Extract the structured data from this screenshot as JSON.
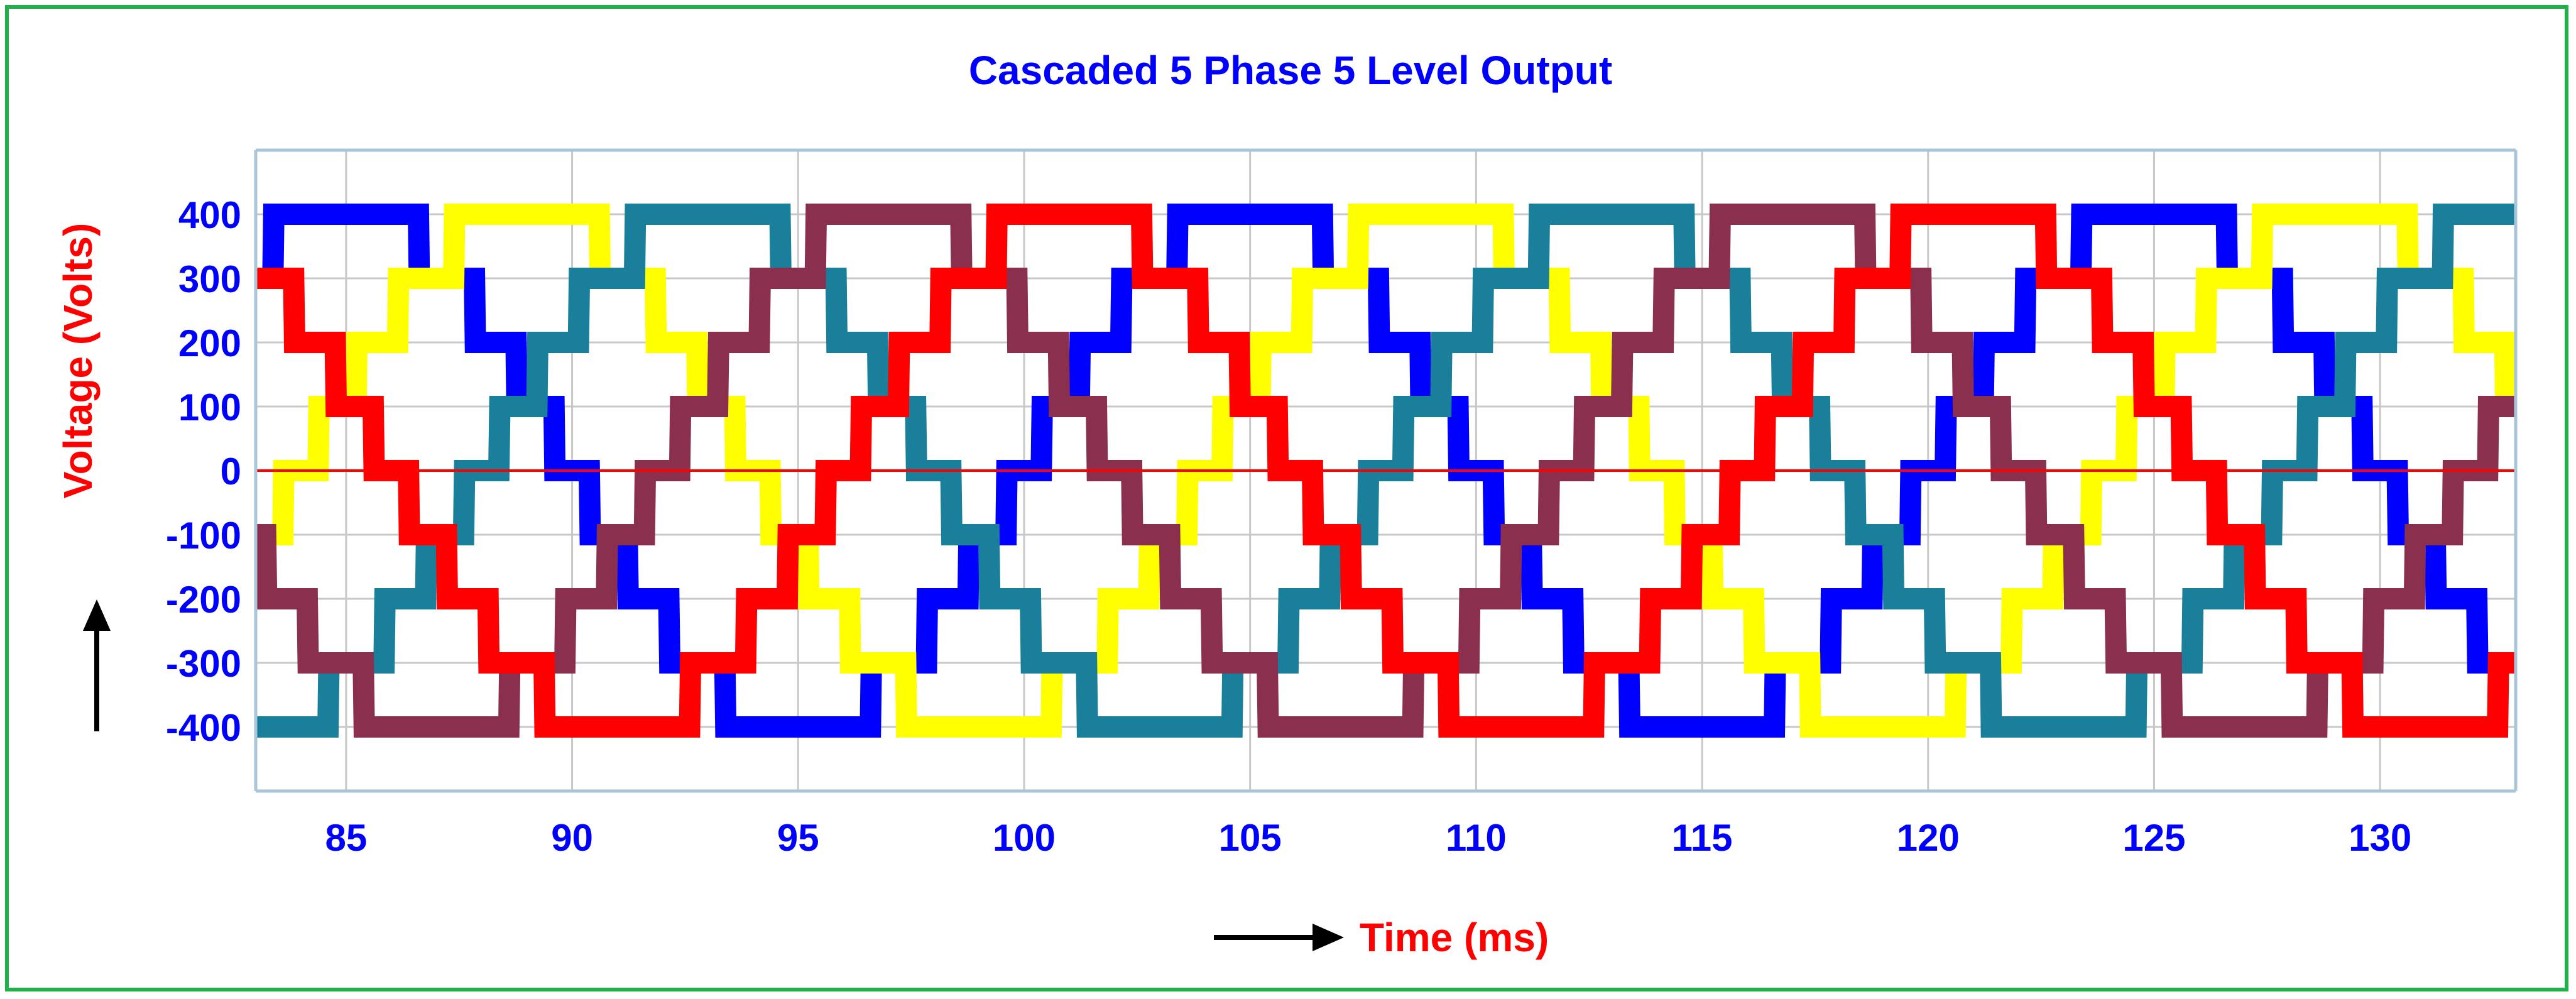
{
  "chart_data": {
    "type": "line",
    "title": "Cascaded 5 Phase 5 Level Output",
    "xlabel": "Time (ms)",
    "ylabel": "Voltage (Volts)",
    "xlim": [
      83,
      133
    ],
    "ylim": [
      -500,
      500
    ],
    "x_ticks": [
      85,
      90,
      95,
      100,
      105,
      110,
      115,
      120,
      125,
      130
    ],
    "y_ticks": [
      400,
      300,
      200,
      100,
      0,
      -100,
      -200,
      -300,
      -400
    ],
    "grid": true,
    "levels": [
      -400,
      -300,
      -200,
      -100,
      0,
      100,
      200,
      300,
      400
    ],
    "period_ms": 20,
    "series": [
      {
        "color": "#0000ff",
        "phase_offset_ms": 0
      },
      {
        "color": "#ffff00",
        "phase_offset_ms": 4
      },
      {
        "color": "#1a7f9b",
        "phase_offset_ms": 8
      },
      {
        "color": "#8b2f4f",
        "phase_offset_ms": 12
      },
      {
        "color": "#ff0000",
        "phase_offset_ms": 16
      }
    ]
  },
  "colors": {
    "title": "#0000ff",
    "axis_label": "#ff0000",
    "tick_label": "#0000ff",
    "frame": "#22b04b",
    "grid": "#c8c8c8",
    "zero_line": "#ff0000"
  }
}
